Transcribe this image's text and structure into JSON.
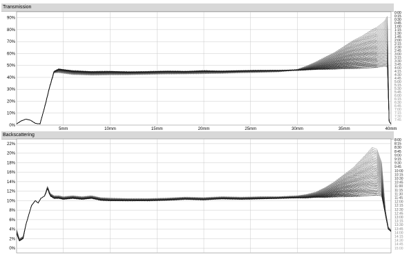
{
  "panels": {
    "top_title": "Transmission",
    "bottom_title": "Backscattering"
  },
  "colors": {
    "early_curve": "#111111",
    "late_curve": "#9a9a9a",
    "grid": "#c8c8c8",
    "plot_bg": "#ffffff",
    "title_bar": "#d8d8d8"
  },
  "chart_data": [
    {
      "type": "line",
      "title": "Transmission",
      "xlabel": "",
      "ylabel": "",
      "x_unit": "mm",
      "xlim": [
        0,
        40
      ],
      "ylim": [
        0,
        95
      ],
      "x_ticks": [
        {
          "value": 5,
          "label": "5mm"
        },
        {
          "value": 10,
          "label": "10mm"
        },
        {
          "value": 15,
          "label": "15mm"
        },
        {
          "value": 20,
          "label": "20mm"
        },
        {
          "value": 25,
          "label": "25mm"
        },
        {
          "value": 30,
          "label": "30mm"
        },
        {
          "value": 35,
          "label": "35mm"
        },
        {
          "value": 40,
          "label": "40mm"
        }
      ],
      "y_ticks": [
        {
          "value": 0,
          "label": "0%"
        },
        {
          "value": 10,
          "label": "10%"
        },
        {
          "value": 20,
          "label": "20%"
        },
        {
          "value": 30,
          "label": "30%"
        },
        {
          "value": 40,
          "label": "40%"
        },
        {
          "value": 50,
          "label": "50%"
        },
        {
          "value": 60,
          "label": "60%"
        },
        {
          "value": 70,
          "label": "70%"
        },
        {
          "value": 80,
          "label": "80%"
        },
        {
          "value": 90,
          "label": "90%"
        }
      ],
      "grid": true,
      "legend_placement": "right",
      "legend_labels": [
        "0:00",
        "0:15",
        "0:30",
        "0:45",
        "1:00",
        "1:15",
        "1:30",
        "1:45",
        "2:00",
        "2:15",
        "2:30",
        "2:45",
        "3:00",
        "3:15",
        "3:30",
        "3:45",
        "4:00",
        "4:15",
        "4:30",
        "4:45",
        "5:00",
        "5:15",
        "5:30",
        "5:45",
        "6:00",
        "6:15",
        "6:30",
        "6:45",
        "7:00",
        "7:15",
        "7:30",
        "7:45"
      ],
      "series_first": {
        "name": "0:00",
        "x": [
          0,
          0.5,
          1,
          1.5,
          2,
          2.5,
          3,
          3.5,
          4,
          4.5,
          5,
          6,
          8,
          10,
          12,
          14,
          16,
          18,
          20,
          22,
          24,
          26,
          28,
          30,
          31,
          32,
          33,
          34,
          35,
          36,
          37,
          38,
          38.5,
          39,
          39.3,
          39.6,
          39.8,
          40
        ],
        "y": [
          1,
          3.5,
          5,
          4,
          1.5,
          1,
          15,
          31,
          45,
          47,
          46.5,
          45.5,
          44.8,
          45,
          44.6,
          44.8,
          45.2,
          45,
          45.5,
          45.2,
          45.6,
          45.8,
          45.8,
          46,
          46.3,
          46.6,
          46.8,
          47,
          47.2,
          47.5,
          47.8,
          48.1,
          48.5,
          49,
          49.5,
          49,
          3,
          1
        ]
      },
      "series_last": {
        "name": "7:45",
        "x": [
          0,
          0.5,
          1,
          1.5,
          2,
          2.5,
          3,
          3.5,
          4,
          4.5,
          5,
          6,
          8,
          10,
          12,
          14,
          16,
          18,
          20,
          22,
          24,
          26,
          28,
          30,
          31,
          32,
          33,
          34,
          35,
          36,
          37,
          38,
          38.5,
          39,
          39.3,
          39.6,
          39.8,
          40
        ],
        "y": [
          1,
          3.5,
          5,
          4,
          1.5,
          1,
          15,
          31,
          44,
          44,
          43.5,
          42.5,
          42,
          42.2,
          42.3,
          42.6,
          42.9,
          43,
          43.2,
          43.5,
          44,
          44.3,
          44.8,
          46.5,
          49.5,
          53,
          57,
          61,
          66,
          71,
          75,
          80,
          82,
          85,
          87,
          91,
          3,
          1
        ]
      }
    },
    {
      "type": "line",
      "title": "Backscattering",
      "xlabel": "",
      "ylabel": "",
      "x_unit": "mm",
      "xlim": [
        0,
        40
      ],
      "ylim": [
        -1,
        23
      ],
      "x_ticks": [
        {
          "value": 5,
          "label": "5mm"
        },
        {
          "value": 10,
          "label": "10mm"
        },
        {
          "value": 15,
          "label": "15mm"
        },
        {
          "value": 20,
          "label": "20mm"
        },
        {
          "value": 25,
          "label": "25mm"
        },
        {
          "value": 30,
          "label": "30mm"
        },
        {
          "value": 35,
          "label": "35mm"
        }
      ],
      "y_ticks": [
        {
          "value": 0,
          "label": "0%"
        },
        {
          "value": 2,
          "label": "2%"
        },
        {
          "value": 4,
          "label": "4%"
        },
        {
          "value": 6,
          "label": "6%"
        },
        {
          "value": 8,
          "label": "8%"
        },
        {
          "value": 10,
          "label": "10%"
        },
        {
          "value": 12,
          "label": "12%"
        },
        {
          "value": 14,
          "label": "14%"
        },
        {
          "value": 16,
          "label": "16%"
        },
        {
          "value": 18,
          "label": "18%"
        },
        {
          "value": 20,
          "label": "20%"
        },
        {
          "value": 22,
          "label": "22%"
        }
      ],
      "grid": true,
      "legend_placement": "right",
      "legend_labels": [
        "8:00",
        "8:15",
        "8:30",
        "8:45",
        "9:00",
        "9:15",
        "9:30",
        "9:45",
        "10:00",
        "10:15",
        "10:30",
        "10:45",
        "11:00",
        "11:15",
        "11:30",
        "11:45",
        "12:00",
        "12:15",
        "12:30",
        "12:45",
        "13:00",
        "13:15",
        "13:30",
        "13:45",
        "14:00",
        "14:15",
        "14:30",
        "14:45",
        "15:00"
      ],
      "series_first": {
        "name": "8:00",
        "x": [
          0,
          0.3,
          0.7,
          1,
          1.3,
          1.6,
          2,
          2.3,
          2.6,
          3,
          3.3,
          3.6,
          4,
          4.5,
          5,
          6,
          7,
          8,
          9,
          10,
          12,
          14,
          16,
          18,
          20,
          22,
          24,
          26,
          28,
          30,
          31,
          32,
          33,
          34,
          35,
          36,
          37,
          38,
          38.5,
          39,
          39.4,
          39.7,
          40
        ],
        "y": [
          3,
          1.5,
          2,
          5,
          7,
          9,
          10,
          9.5,
          10.5,
          11,
          12.5,
          11,
          10.5,
          10.5,
          10.3,
          10.5,
          10.3,
          10.5,
          10.1,
          10,
          10,
          10,
          10.1,
          10.3,
          10.2,
          10.4,
          10.3,
          10.4,
          10.5,
          10.6,
          10.6,
          10.7,
          10.7,
          10.8,
          10.8,
          10.9,
          11,
          11.1,
          11.2,
          11,
          7,
          4,
          3.5
        ]
      },
      "series_last": {
        "name": "15:00",
        "x": [
          0,
          0.3,
          0.7,
          1,
          1.3,
          1.6,
          2,
          2.3,
          2.6,
          3,
          3.3,
          3.6,
          4,
          4.5,
          5,
          6,
          7,
          8,
          9,
          10,
          12,
          14,
          16,
          18,
          20,
          22,
          24,
          26,
          28,
          30,
          31,
          32,
          33,
          34,
          35,
          36,
          37,
          38,
          38.5,
          39,
          39.4,
          39.7,
          40
        ],
        "y": [
          4,
          2,
          2.5,
          5,
          7,
          9,
          10,
          9.5,
          10.5,
          11,
          13,
          11.5,
          11,
          11,
          10.8,
          11,
          10.8,
          11,
          10.6,
          10.5,
          10.4,
          10.4,
          10.5,
          10.7,
          10.6,
          10.8,
          10.7,
          10.8,
          10.8,
          11,
          11.3,
          11.8,
          12.8,
          14,
          15.5,
          17,
          19,
          21.2,
          20.8,
          18,
          8,
          4.5,
          3.8
        ]
      }
    }
  ]
}
